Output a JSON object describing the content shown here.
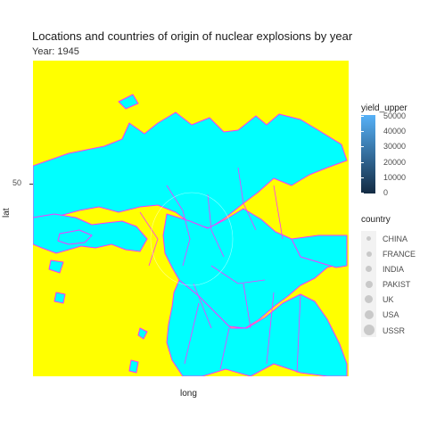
{
  "chart_data": {
    "type": "scatter",
    "title": "Locations and countries of origin of nuclear explosions by year",
    "subtitle": "Year: 1945",
    "xlabel": "long",
    "ylabel": "lat",
    "y_ticks": [
      "50"
    ],
    "background_color": "#FFFF00",
    "land_fill": "#00FFFF",
    "border_color": "#FF33FF",
    "colorbar": {
      "title": "yield_upper",
      "ticks": [
        "50000",
        "40000",
        "30000",
        "20000",
        "10000",
        "0"
      ],
      "range": [
        0,
        50000
      ],
      "low_color": "#132B43",
      "high_color": "#56B1F7"
    },
    "size_legend": {
      "title": "country",
      "entries": [
        "CHINA",
        "FRANCE",
        "INDIA",
        "PAKIST",
        "UK",
        "USA",
        "USSR"
      ]
    },
    "points": []
  }
}
